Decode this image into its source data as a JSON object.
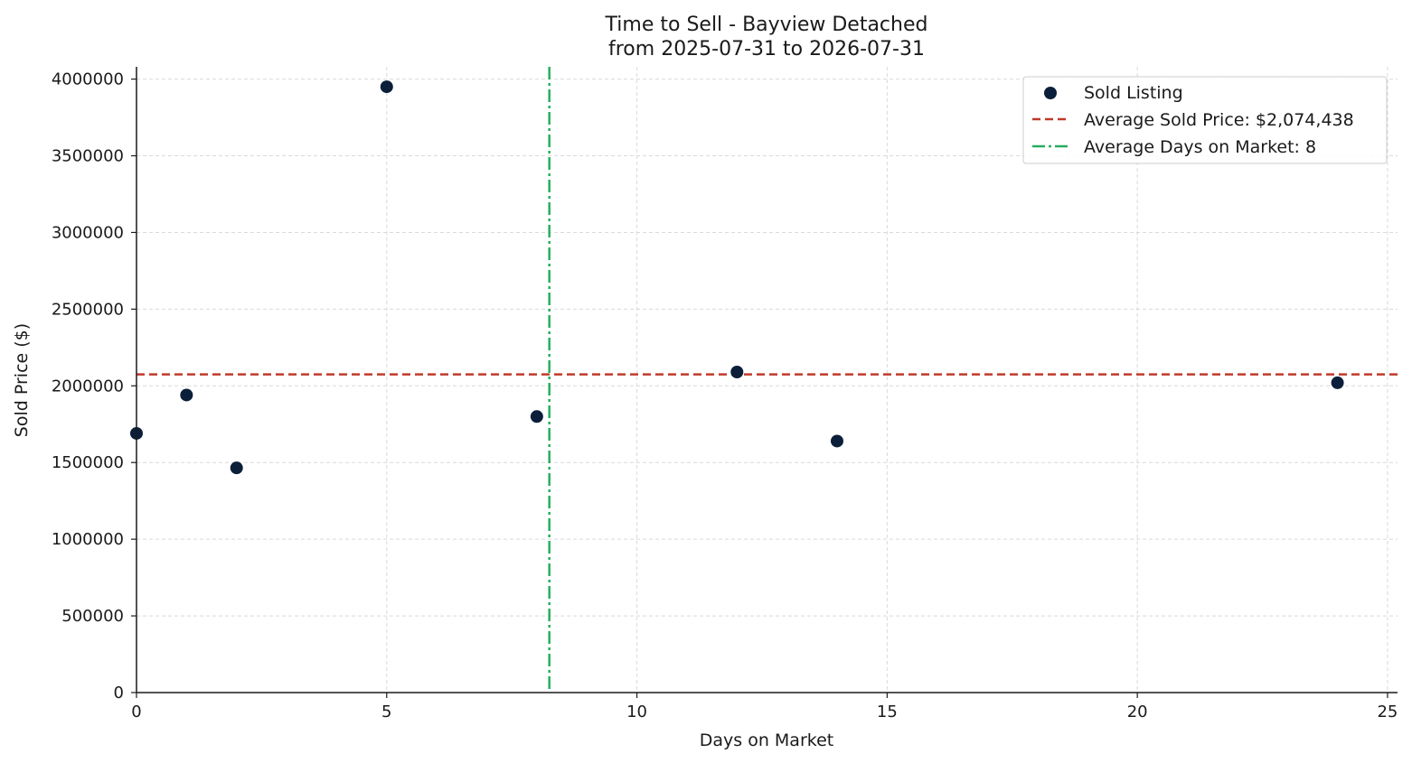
{
  "chart_data": {
    "type": "scatter",
    "title": "Time to Sell - Bayview Detached",
    "subtitle": "from 2025-07-31 to 2026-07-31",
    "xlabel": "Days on Market",
    "ylabel": "Sold Price ($)",
    "xlim": [
      0,
      25.2
    ],
    "ylim": [
      0,
      4080000
    ],
    "xticks": [
      0,
      5,
      10,
      15,
      20,
      25
    ],
    "yticks": [
      0,
      500000,
      1000000,
      1500000,
      2000000,
      2500000,
      3000000,
      3500000,
      4000000
    ],
    "grid": true,
    "legend_position": "top-right",
    "series": [
      {
        "name": "Sold Listing",
        "color": "#0b1f3a",
        "points": [
          {
            "x": 0,
            "y": 1690000
          },
          {
            "x": 1,
            "y": 1940000
          },
          {
            "x": 2,
            "y": 1465000
          },
          {
            "x": 5,
            "y": 3950000
          },
          {
            "x": 8,
            "y": 1800000
          },
          {
            "x": 12,
            "y": 2090000
          },
          {
            "x": 14,
            "y": 1640000
          },
          {
            "x": 24,
            "y": 2020000
          }
        ]
      }
    ],
    "reference_lines": [
      {
        "name": "Average Sold Price: $2,074,438",
        "orientation": "horizontal",
        "value": 2074438,
        "color": "#c0392b",
        "style": "dashed"
      },
      {
        "name": "Average Days on Market: 8",
        "orientation": "vertical",
        "value": 8.25,
        "color": "#27ae60",
        "style": "dashdot"
      }
    ]
  }
}
